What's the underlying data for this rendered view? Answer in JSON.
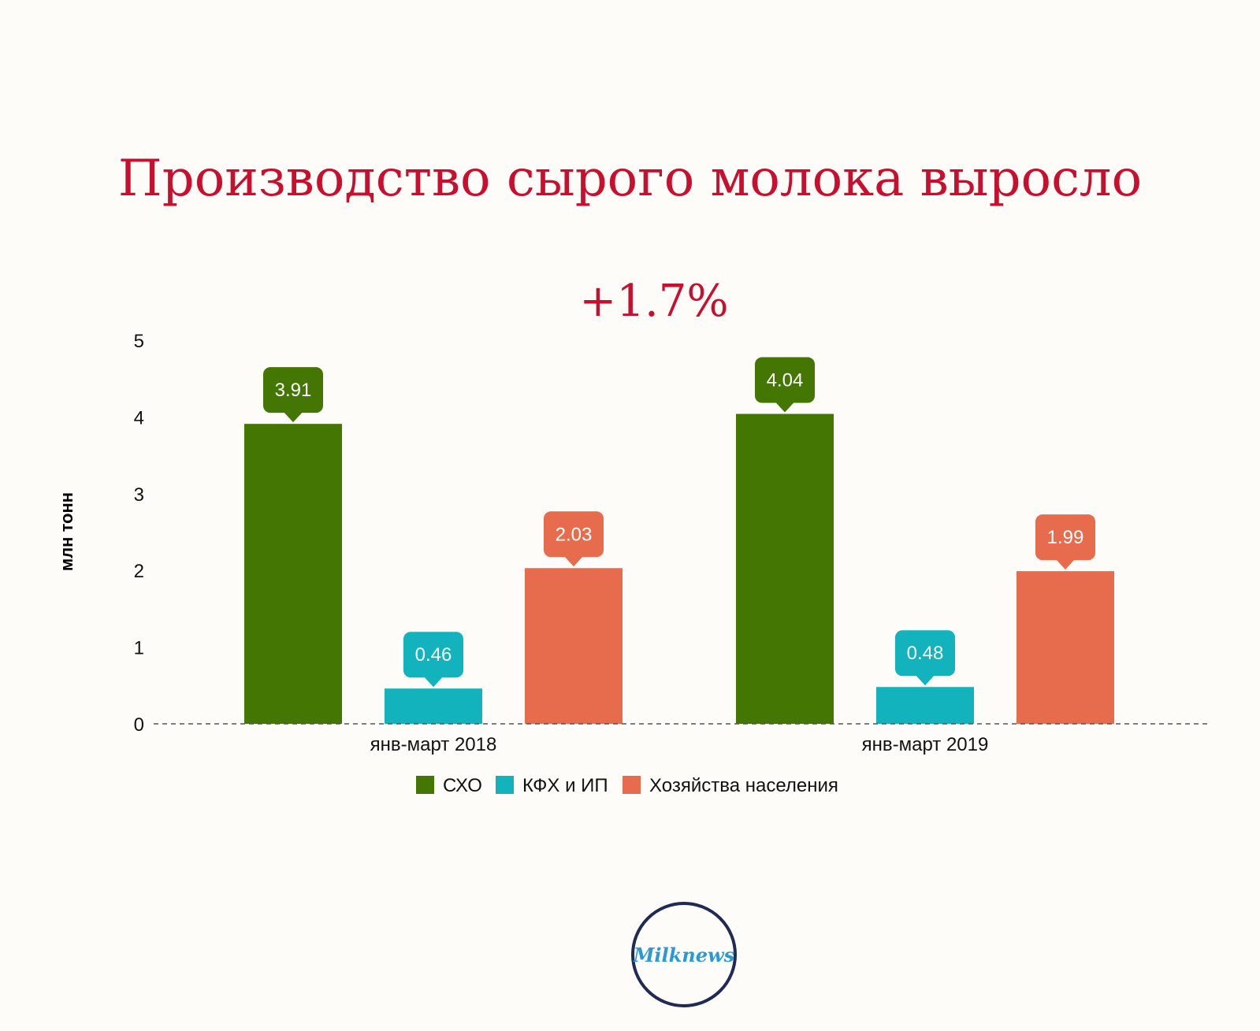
{
  "title": "Производство сырого молока выросло",
  "subtitle": "+1.7%",
  "logo_text": "Milknews",
  "chart_data": {
    "type": "bar",
    "categories": [
      "янв-март 2018",
      "янв-март 2019"
    ],
    "series": [
      {
        "name": "СХО",
        "color": "#447604",
        "values": [
          3.91,
          4.04
        ]
      },
      {
        "name": "КФХ и ИП",
        "color": "#12b3bc",
        "values": [
          0.46,
          0.48
        ]
      },
      {
        "name": "Хозяйства населения",
        "color": "#e76c4e",
        "values": [
          2.03,
          1.99
        ]
      }
    ],
    "ylabel": "млн тонн",
    "yticks": [
      0,
      1,
      2,
      3,
      4,
      5
    ],
    "ylim": [
      0,
      5
    ],
    "legend": "bottom-center",
    "grid": false
  }
}
